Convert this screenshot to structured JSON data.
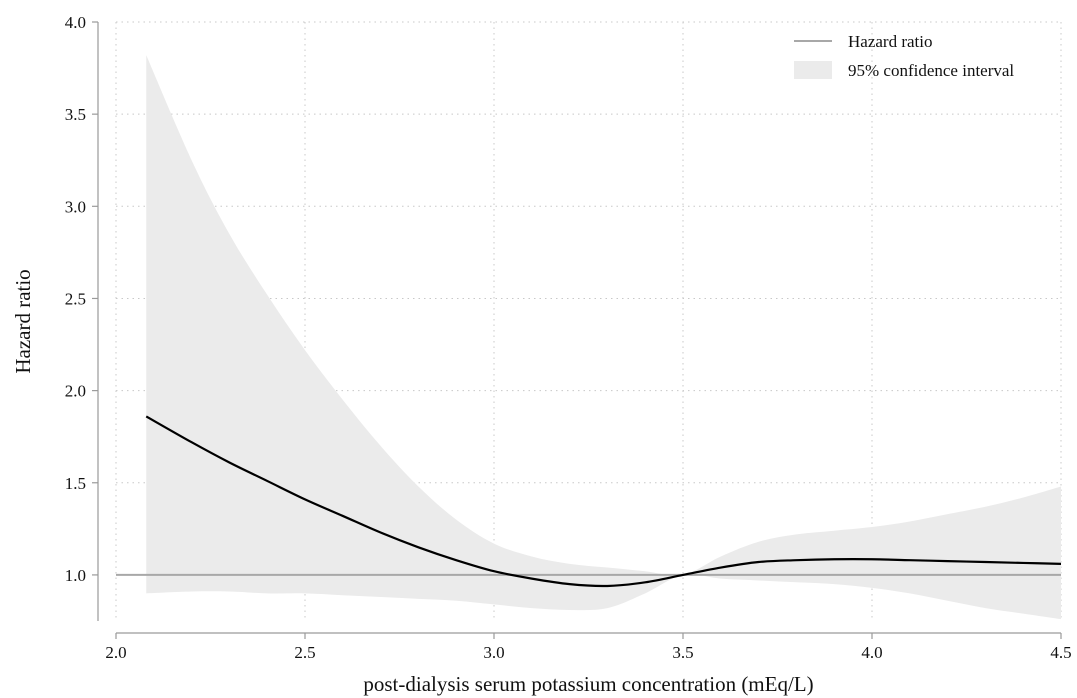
{
  "chart_data": {
    "type": "line",
    "title": "",
    "xlabel": "post-dialysis serum potassium concentration (mEq/L)",
    "ylabel": "Hazard ratio",
    "xlim": [
      2.0,
      4.5
    ],
    "ylim": [
      0.75,
      4.0
    ],
    "xticks": [
      2.0,
      2.5,
      3.0,
      3.5,
      4.0,
      4.5
    ],
    "xtick_labels": [
      "2.0",
      "2.5",
      "3.0",
      "3.5",
      "4.0",
      "4.5"
    ],
    "yticks": [
      1.0,
      1.5,
      2.0,
      2.5,
      3.0,
      3.5,
      4.0
    ],
    "ytick_labels": [
      "1.0",
      "1.5",
      "2.0",
      "2.5",
      "3.0",
      "3.5",
      "4.0"
    ],
    "grid": true,
    "legend_position": "top-right",
    "legend": [
      {
        "label": "Hazard ratio",
        "kind": "line"
      },
      {
        "label": "95% confidence interval",
        "kind": "band"
      }
    ],
    "reference_line": {
      "y": 1.0,
      "color": "#a8a8a8"
    },
    "colors": {
      "curve": "#000000",
      "band": "#ebebeb",
      "reference": "#a8a8a8",
      "axis": "#9a9a9a"
    },
    "x": [
      2.08,
      2.2,
      2.3,
      2.4,
      2.5,
      2.6,
      2.7,
      2.8,
      2.9,
      3.0,
      3.1,
      3.2,
      3.3,
      3.4,
      3.5,
      3.6,
      3.7,
      3.8,
      3.9,
      4.0,
      4.1,
      4.2,
      4.3,
      4.4,
      4.5
    ],
    "series": [
      {
        "name": "Hazard ratio",
        "values": [
          1.86,
          1.72,
          1.61,
          1.51,
          1.41,
          1.32,
          1.23,
          1.15,
          1.08,
          1.02,
          0.98,
          0.95,
          0.94,
          0.96,
          1.0,
          1.04,
          1.07,
          1.08,
          1.085,
          1.085,
          1.08,
          1.075,
          1.07,
          1.065,
          1.06
        ]
      }
    ],
    "confidence_interval": {
      "name": "95% confidence interval",
      "lower": [
        0.9,
        0.91,
        0.91,
        0.9,
        0.9,
        0.89,
        0.88,
        0.87,
        0.86,
        0.84,
        0.82,
        0.81,
        0.82,
        0.9,
        1.0,
        0.98,
        0.97,
        0.96,
        0.95,
        0.93,
        0.9,
        0.86,
        0.82,
        0.79,
        0.76
      ],
      "upper": [
        3.82,
        3.25,
        2.85,
        2.52,
        2.22,
        1.95,
        1.7,
        1.48,
        1.3,
        1.17,
        1.1,
        1.06,
        1.04,
        1.02,
        1.0,
        1.1,
        1.18,
        1.22,
        1.24,
        1.26,
        1.29,
        1.33,
        1.37,
        1.42,
        1.48
      ]
    }
  }
}
